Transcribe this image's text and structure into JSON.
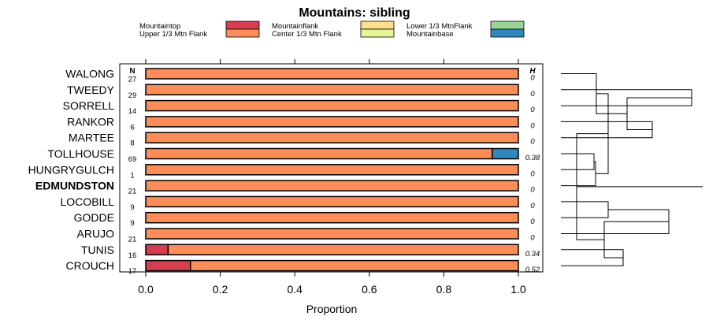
{
  "chart_data": {
    "type": "bar",
    "stacked": true,
    "orientation": "horizontal",
    "title": "Mountains: sibling",
    "xlabel": "Proportion",
    "ylabel": "",
    "xlim": [
      0,
      1
    ],
    "xticks": [
      "0.0",
      "0.2",
      "0.4",
      "0.6",
      "0.8",
      "1.0"
    ],
    "column_headers": {
      "n": "N",
      "h": "H"
    },
    "legend": [
      {
        "name": "Mountaintop",
        "color": "#d53e4f"
      },
      {
        "name": "Upper 1/3 Mtn Flank",
        "color": "#fc8d59"
      },
      {
        "name": "Mountainflank",
        "color": "#fee08b"
      },
      {
        "name": "Center 1/3 Mtn Flank",
        "color": "#e6f598"
      },
      {
        "name": "Lower 1/3 MtnFlank",
        "color": "#99d594"
      },
      {
        "name": "Mountainbase",
        "color": "#3288bd"
      }
    ],
    "categories": [
      "WALONG",
      "TWEEDY",
      "SORRELL",
      "RANKOR",
      "MARTEE",
      "TOLLHOUSE",
      "HUNGRYGULCH",
      "EDMUNDSTON",
      "LOCOBILL",
      "GODDE",
      "ARUJO",
      "TUNIS",
      "CROUCH"
    ],
    "bold_category": "EDMUNDSTON",
    "n": [
      "27",
      "29",
      "14",
      "6",
      "8",
      "69",
      "1",
      "21",
      "9",
      "9",
      "21",
      "16",
      "17"
    ],
    "h": [
      "0",
      "0",
      "0",
      "0",
      "0",
      "0.38",
      "0",
      "0",
      "0",
      "0",
      "0",
      "0.34",
      "0.52"
    ],
    "series": [
      {
        "name": "Mountaintop",
        "values": [
          0,
          0,
          0,
          0,
          0,
          0,
          0,
          0,
          0,
          0,
          0,
          0.06,
          0.12
        ]
      },
      {
        "name": "Upper 1/3 Mtn Flank",
        "values": [
          1,
          1,
          1,
          1,
          1,
          0.93,
          1,
          1,
          1,
          1,
          1,
          0.94,
          0.88
        ]
      },
      {
        "name": "Mountainbase",
        "values": [
          0,
          0,
          0,
          0,
          0,
          0.07,
          0,
          0,
          0,
          0,
          0,
          0,
          0
        ]
      }
    ],
    "dendrogram_leaf_order": [
      "WALONG",
      "TWEEDY",
      "SORRELL",
      "RANKOR",
      "MARTEE",
      "TOLLHOUSE",
      "HUNGRYGULCH",
      "EDMUNDSTON",
      "LOCOBILL",
      "GODDE",
      "ARUJO",
      "TUNIS",
      "CROUCH"
    ]
  }
}
